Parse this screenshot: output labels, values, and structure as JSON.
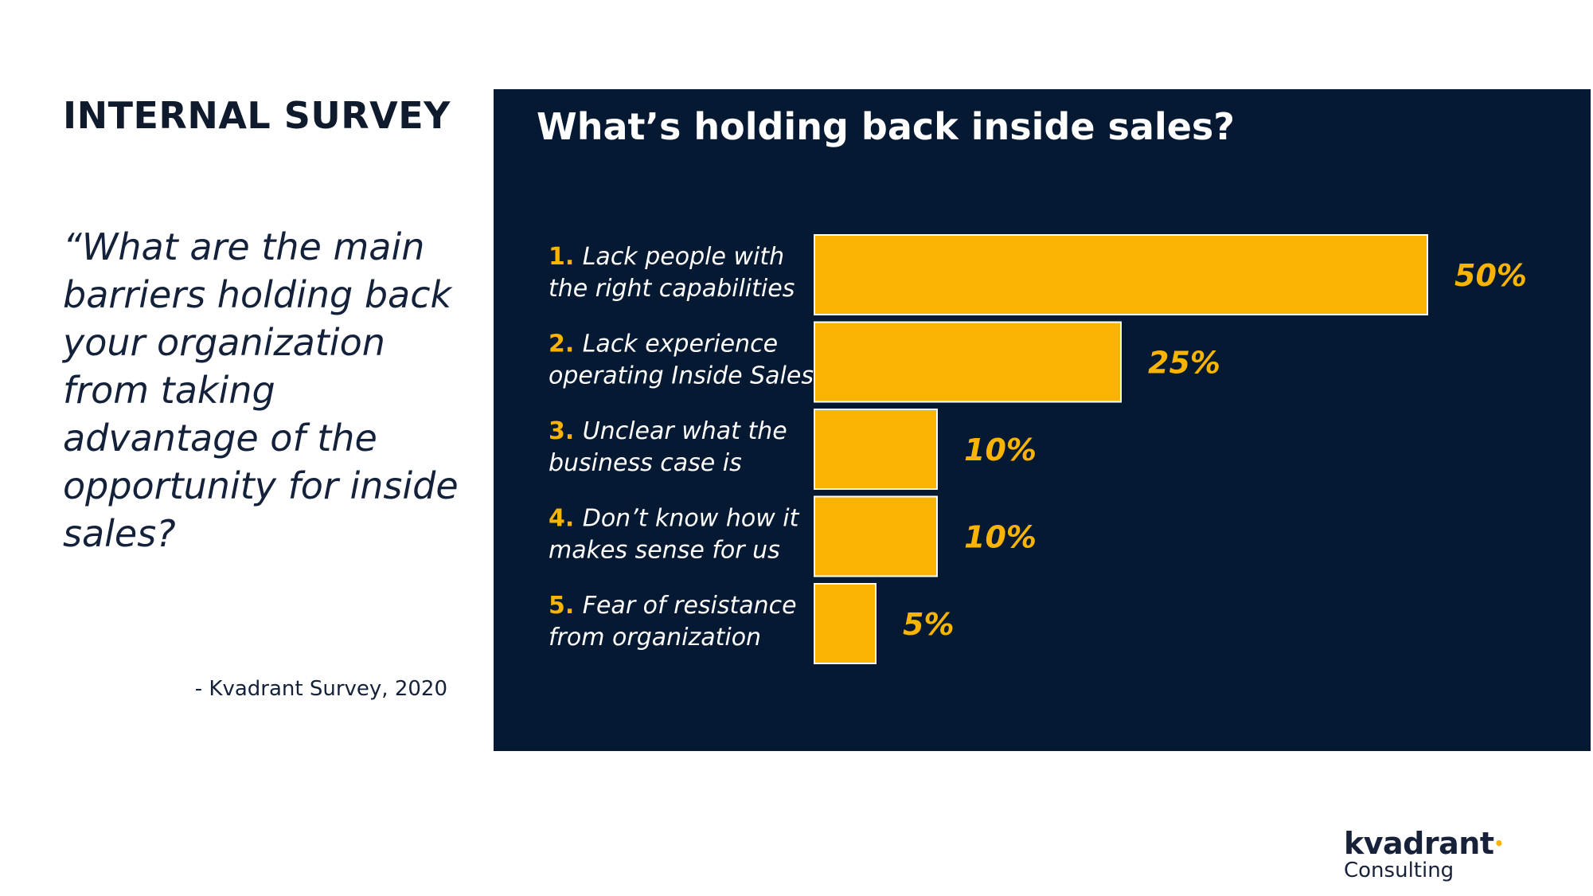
{
  "left": {
    "heading": "INTERNAL SURVEY",
    "quote": "“What are the main barriers holding back your organization from taking advantage of the opportunity for inside sales?",
    "attribution": "- Kvadrant Survey, 2020"
  },
  "logo": {
    "name": "kvadrant",
    "subtitle": "Consulting"
  },
  "colors": {
    "panel": "#051932",
    "bar": "#f8b400",
    "accent": "#f8b400"
  },
  "chart_data": {
    "type": "bar",
    "orientation": "horizontal",
    "title": "What’s holding back inside sales?",
    "categories": [
      "1. Lack people with the right capabilities",
      "2. Lack experience operating Inside Sales",
      "3. Unclear what the business case is",
      "4. Don’t know how it makes sense for us",
      "5. Fear of resistance from organization"
    ],
    "category_lines": [
      [
        "1.",
        "Lack people with",
        "the right capabilities"
      ],
      [
        "2.",
        "Lack experience",
        "operating Inside Sales"
      ],
      [
        "3.",
        "Unclear what the",
        "business case is"
      ],
      [
        "4.",
        "Don’t know how it",
        "makes sense for us"
      ],
      [
        "5.",
        "Fear of resistance",
        "from organization"
      ]
    ],
    "values": [
      50,
      25,
      10,
      10,
      5
    ],
    "value_labels": [
      "50%",
      "25%",
      "10%",
      "10%",
      "5%"
    ],
    "xlim": [
      0,
      50
    ],
    "unit": "%",
    "grid": false,
    "legend": "none"
  }
}
